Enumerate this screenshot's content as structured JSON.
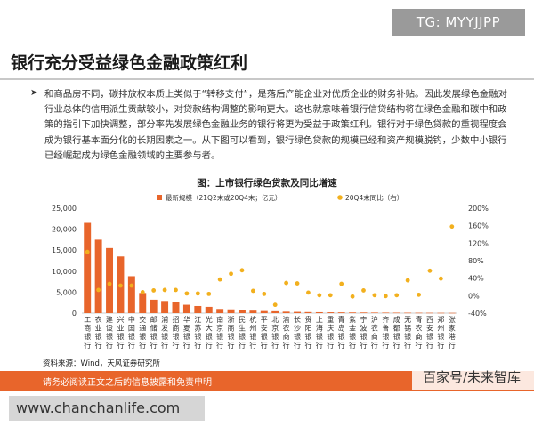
{
  "watermark_top": "TG: MYYJJPP",
  "slide_title": "银行充分受益绿色金融政策红利",
  "body_text": "和商品房不同，碳排放权本质上类似于“转移支付”，是落后产能企业对优质企业的财务补贴。因此发展绿色金融对行业总体的信用派生贡献较小，对贷款结构调整的影响更大。这也就意味着银行信贷结构将在绿色金融和碳中和政策的指引下加快调整，部分率先发展绿色金融业务的银行将更为受益于政策红利。银行对于绿色贷款的重视程度会成为银行基本面分化的长期因素之一。从下图可以看到，银行绿色贷款的规模已经和资产规模脱钩，少数中小银行已经崛起成为绿色金融领域的主要参与者。",
  "bullet_icon": "arrow-right-icon",
  "chart_title": "图：上市银行绿色贷款及同比增速",
  "source_text": "资料来源：Wind，天风证券研究所",
  "footer_text": "请务必阅读正文之后的信息披露和免责申明",
  "watermark_bottom_right": "百家号/未来智库",
  "watermark_bottom_left": "www.chanchanlife.com",
  "colors": {
    "bar": "#e8652b",
    "dot": "#f2b01e",
    "footer": "#e8652b"
  },
  "chart_data": {
    "type": "bar",
    "categories": [
      "工商银行",
      "农业银行",
      "建设银行",
      "兴业银行",
      "中国银行",
      "交通银行",
      "邮储银行",
      "浦发银行",
      "招商银行",
      "华夏银行",
      "江苏银行",
      "光大银行",
      "南京银行",
      "浙商银行",
      "民生银行",
      "杭州银行",
      "平安银行",
      "北京银行",
      "渝农商行",
      "长沙银行",
      "贵阳银行",
      "上海银行",
      "重庆银行",
      "青岛银行",
      "紫金银行",
      "宁波银行",
      "沪农商行",
      "齐鲁银行",
      "成都银行",
      "无锡银行",
      "青农商行",
      "西安银行",
      "郑州银行",
      "张家港行"
    ],
    "series": [
      {
        "name": "最新规模（21Q2末或20Q4末；亿元）",
        "type": "bar",
        "axis": "left",
        "values": [
          21500,
          17500,
          15500,
          13500,
          8800,
          4800,
          3200,
          2900,
          2600,
          2000,
          1700,
          1500,
          1000,
          900,
          800,
          600,
          500,
          450,
          350,
          300,
          250,
          220,
          200,
          180,
          160,
          150,
          130,
          120,
          110,
          100,
          90,
          80,
          70,
          60
        ]
      },
      {
        "name": "20Q4末同比（右）",
        "type": "scatter",
        "axis": "right",
        "values": [
          1.0,
          0.13,
          0.27,
          0.23,
          0.23,
          0.08,
          0.12,
          0.13,
          0.13,
          0.05,
          0.05,
          0.04,
          0.37,
          0.5,
          0.58,
          0.11,
          0.04,
          -0.21,
          0.29,
          0.28,
          0.07,
          0.01,
          0.01,
          0.27,
          -0.02,
          0.12,
          0.01,
          -0.01,
          0.01,
          0.35,
          0.02,
          0.57,
          0.39,
          1.58
        ]
      }
    ],
    "y_left": {
      "min": 0,
      "max": 25000,
      "ticks": [
        0,
        5000,
        10000,
        15000,
        20000,
        25000
      ],
      "tick_labels": [
        "0",
        "5,000",
        "10,000",
        "15,000",
        "20,000",
        "25,000"
      ]
    },
    "y_right": {
      "min": -0.4,
      "max": 2.0,
      "ticks": [
        -0.4,
        0,
        0.4,
        0.8,
        1.2,
        1.6,
        2.0
      ],
      "tick_labels": [
        "-40%",
        "0%",
        "40%",
        "80%",
        "120%",
        "160%",
        "200%"
      ]
    },
    "legend_placement": "top",
    "grid": false
  }
}
